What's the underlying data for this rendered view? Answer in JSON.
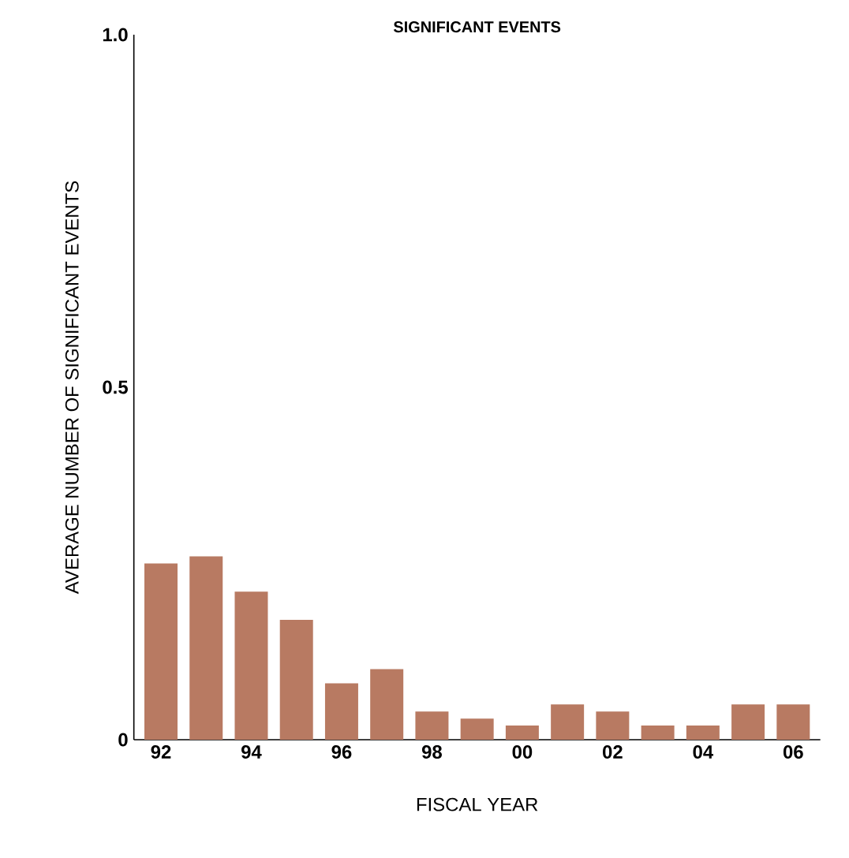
{
  "chart_data": {
    "type": "bar",
    "title": "SIGNIFICANT EVENTS",
    "xlabel": "FISCAL YEAR",
    "ylabel": "AVERAGE NUMBER OF SIGNIFICANT EVENTS",
    "categories": [
      "92",
      null,
      "94",
      null,
      "96",
      null,
      "98",
      null,
      "00",
      null,
      "02",
      null,
      "04",
      null,
      "06"
    ],
    "values": [
      0.25,
      0.26,
      0.21,
      0.17,
      0.08,
      0.1,
      0.04,
      0.03,
      0.02,
      0.05,
      0.04,
      0.02,
      0.02,
      0.05,
      0.05
    ],
    "color": "#b87a62",
    "ylim": [
      0,
      1.0
    ],
    "yticks": [
      0,
      {
        "value": 0.5,
        "label": "0.5"
      },
      {
        "value": 1.0,
        "label": "1.0"
      }
    ],
    "grid": false
  }
}
